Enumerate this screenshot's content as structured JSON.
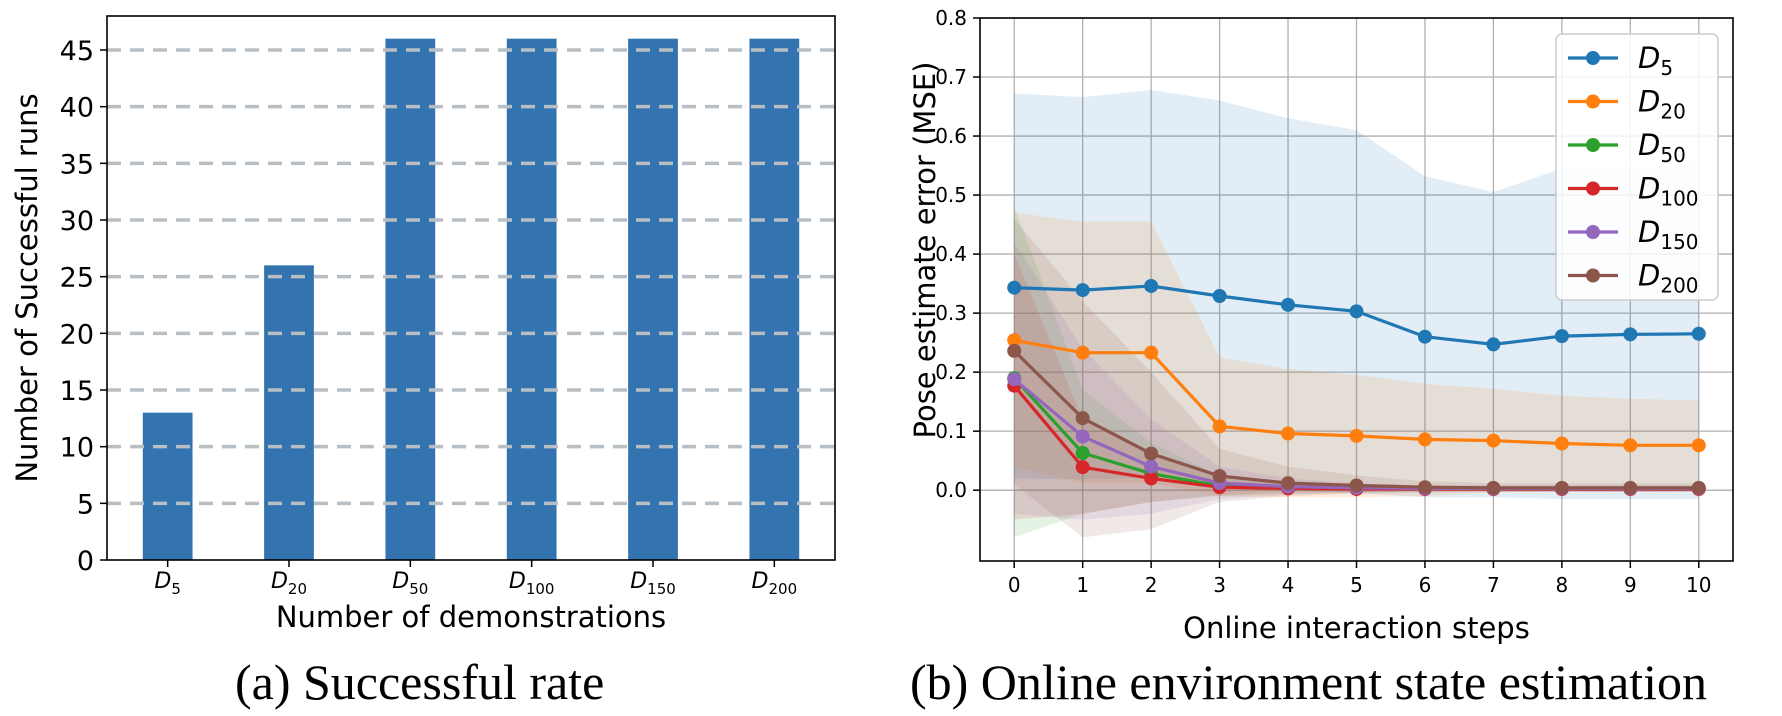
{
  "captions": {
    "a": "(a) Successful rate",
    "b": "(b) Online environment state estimation"
  },
  "colors": {
    "bar": "#3373b0",
    "grid_dash": "#b7bfc4",
    "grid": "#b0b0b0",
    "axes": "#000000"
  },
  "chart_data": [
    {
      "type": "bar",
      "title": "",
      "xlabel": "Number of demonstrations",
      "ylabel": "Number of Successful runs",
      "ylim": [
        0,
        48
      ],
      "yticks": [
        0,
        5,
        10,
        15,
        20,
        25,
        30,
        35,
        40,
        45
      ],
      "grid": "horizontal dashed",
      "categories": [
        {
          "base": "D",
          "sub": "5"
        },
        {
          "base": "D",
          "sub": "20"
        },
        {
          "base": "D",
          "sub": "50"
        },
        {
          "base": "D",
          "sub": "100"
        },
        {
          "base": "D",
          "sub": "150"
        },
        {
          "base": "D",
          "sub": "200"
        }
      ],
      "values": [
        13,
        26,
        46,
        46,
        46,
        46
      ]
    },
    {
      "type": "line",
      "title": "",
      "xlabel": "Online interaction steps",
      "ylabel": "Pose estimate error (MSE)",
      "xlim": [
        -0.5,
        10.5
      ],
      "ylim": [
        -0.12,
        0.8
      ],
      "xticks": [
        0,
        1,
        2,
        3,
        4,
        5,
        6,
        7,
        8,
        9,
        10
      ],
      "yticks": [
        "0.0",
        "0.1",
        "0.2",
        "0.3",
        "0.4",
        "0.5",
        "0.6",
        "0.7",
        "0.8"
      ],
      "grid": true,
      "legend_position": "top-right",
      "x": [
        0,
        1,
        2,
        3,
        4,
        5,
        6,
        7,
        8,
        9,
        10
      ],
      "series": [
        {
          "name": {
            "base": "D",
            "sub": "5"
          },
          "color": "#1f77b4",
          "values": [
            0.343,
            0.339,
            0.346,
            0.329,
            0.314,
            0.303,
            0.26,
            0.247,
            0.261,
            0.264,
            0.265
          ],
          "upper": [
            0.672,
            0.666,
            0.678,
            0.66,
            0.63,
            0.61,
            0.532,
            0.505,
            0.545,
            0.548,
            0.55
          ],
          "lower": [
            0.02,
            0.018,
            0.022,
            0.01,
            0.0,
            -0.005,
            -0.012,
            -0.012,
            -0.015,
            -0.015,
            -0.015
          ]
        },
        {
          "name": {
            "base": "D",
            "sub": "20"
          },
          "color": "#ff7f0e",
          "values": [
            0.254,
            0.233,
            0.233,
            0.108,
            0.096,
            0.092,
            0.086,
            0.084,
            0.079,
            0.076,
            0.076
          ],
          "upper": [
            0.47,
            0.455,
            0.455,
            0.225,
            0.205,
            0.195,
            0.18,
            0.172,
            0.16,
            0.155,
            0.152
          ],
          "lower": [
            0.04,
            0.012,
            0.012,
            -0.01,
            -0.012,
            -0.012,
            -0.01,
            -0.004,
            -0.002,
            -0.003,
            -0.002
          ]
        },
        {
          "name": {
            "base": "D",
            "sub": "50"
          },
          "color": "#2ca02c",
          "values": [
            0.19,
            0.063,
            0.028,
            0.007,
            0.004,
            0.003,
            0.003,
            0.003,
            0.003,
            0.003,
            0.003
          ],
          "upper": [
            0.48,
            0.17,
            0.08,
            0.025,
            0.015,
            0.01,
            0.008,
            0.008,
            0.008,
            0.008,
            0.008
          ],
          "lower": [
            -0.08,
            -0.04,
            -0.02,
            -0.01,
            -0.006,
            -0.004,
            -0.002,
            -0.002,
            -0.002,
            -0.002,
            -0.002
          ]
        },
        {
          "name": {
            "base": "D",
            "sub": "100"
          },
          "color": "#d62728",
          "values": [
            0.177,
            0.039,
            0.02,
            0.005,
            0.003,
            0.002,
            0.002,
            0.002,
            0.002,
            0.002,
            0.002
          ],
          "upper": [
            0.4,
            0.12,
            0.06,
            0.02,
            0.01,
            0.008,
            0.006,
            0.006,
            0.006,
            0.006,
            0.006
          ],
          "lower": [
            -0.05,
            -0.04,
            -0.02,
            -0.008,
            -0.004,
            -0.003,
            -0.002,
            -0.002,
            -0.002,
            -0.002,
            -0.002
          ]
        },
        {
          "name": {
            "base": "D",
            "sub": "150"
          },
          "color": "#9467bd",
          "values": [
            0.188,
            0.091,
            0.04,
            0.012,
            0.006,
            0.004,
            0.003,
            0.003,
            0.003,
            0.003,
            0.003
          ],
          "upper": [
            0.42,
            0.24,
            0.12,
            0.04,
            0.02,
            0.012,
            0.008,
            0.008,
            0.008,
            0.008,
            0.008
          ],
          "lower": [
            -0.04,
            -0.05,
            -0.04,
            -0.015,
            -0.008,
            -0.004,
            -0.002,
            -0.002,
            -0.002,
            -0.002,
            -0.002
          ]
        },
        {
          "name": {
            "base": "D",
            "sub": "200"
          },
          "color": "#8c564b",
          "values": [
            0.236,
            0.122,
            0.062,
            0.024,
            0.012,
            0.008,
            0.005,
            0.004,
            0.004,
            0.004,
            0.004
          ],
          "upper": [
            0.46,
            0.32,
            0.2,
            0.07,
            0.04,
            0.025,
            0.015,
            0.012,
            0.012,
            0.012,
            0.012
          ],
          "lower": [
            0.01,
            -0.08,
            -0.066,
            -0.02,
            -0.01,
            -0.006,
            -0.004,
            -0.003,
            -0.003,
            -0.003,
            -0.003
          ]
        }
      ]
    }
  ]
}
